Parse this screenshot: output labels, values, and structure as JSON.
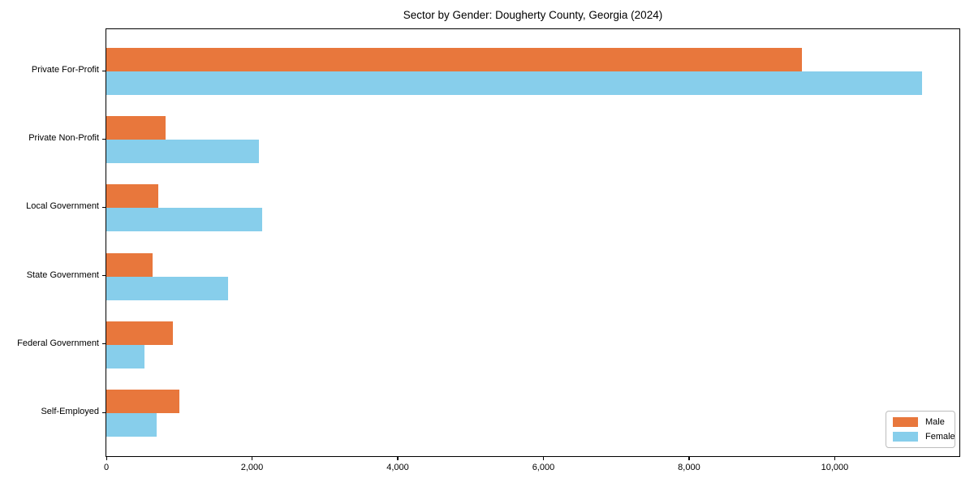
{
  "chart_data": {
    "type": "bar",
    "orientation": "horizontal",
    "title": "Sector by Gender: Dougherty County, Georgia (2024)",
    "categories": [
      "Private For-Profit",
      "Private Non-Profit",
      "Local Government",
      "State Government",
      "Federal Government",
      "Self-Employed"
    ],
    "series": [
      {
        "name": "Male",
        "color": "#E8773C",
        "values": [
          9550,
          810,
          710,
          630,
          910,
          1000
        ]
      },
      {
        "name": "Female",
        "color": "#87CEEB",
        "values": [
          11200,
          2090,
          2140,
          1670,
          520,
          690
        ]
      }
    ],
    "xlabel": "",
    "ylabel": "",
    "xlim": [
      0,
      11700
    ],
    "xticks": [
      0,
      2000,
      4000,
      6000,
      8000,
      10000
    ],
    "xtick_labels": [
      "0",
      "2,000",
      "4,000",
      "6,000",
      "8,000",
      "10,000"
    ],
    "legend_position": "lower right",
    "grid": false
  }
}
